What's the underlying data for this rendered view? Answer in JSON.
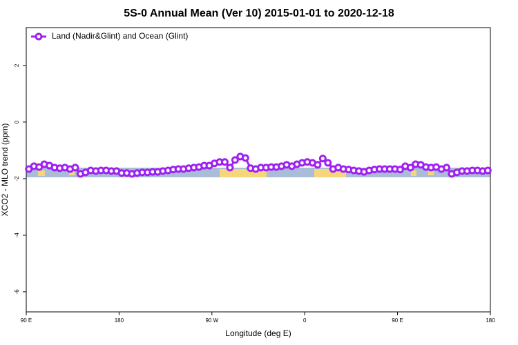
{
  "chart_data": {
    "type": "line",
    "title": "5S-0 Annual Mean (Ver 10)   2015-01-01 to 2020-12-18",
    "x_label": "Longitude (deg E)",
    "y_label": "XCO2 - MLO trend (ppm)",
    "legend": "top-left",
    "x": [
      92.5,
      97.5,
      102.5,
      107.5,
      112.5,
      117.5,
      122.5,
      127.5,
      132.5,
      137.5,
      142.5,
      147.5,
      152.5,
      157.5,
      162.5,
      167.5,
      172.5,
      177.5,
      182.5,
      187.5,
      192.5,
      197.5,
      202.5,
      207.5,
      212.5,
      217.5,
      222.5,
      227.5,
      232.5,
      237.5,
      242.5,
      247.5,
      252.5,
      257.5,
      262.5,
      267.5,
      272.5,
      277.5,
      282.5,
      287.5,
      292.5,
      297.5,
      302.5,
      307.5,
      312.5,
      317.5,
      322.5,
      327.5,
      332.5,
      337.5,
      342.5,
      347.5,
      352.5,
      357.5,
      362.5,
      367.5,
      372.5,
      377.5,
      382.5,
      387.5,
      392.5,
      397.5,
      402.5,
      407.5,
      412.5,
      417.5,
      422.5,
      427.5,
      432.5,
      437.5,
      442.5,
      447.5,
      452.5,
      457.5,
      462.5,
      467.5,
      472.5,
      477.5,
      482.5,
      487.5,
      492.5,
      497.5,
      502.5,
      507.5,
      512.5,
      517.5,
      522.5,
      527.5,
      532.5,
      537.5
    ],
    "series": [
      {
        "name": "Land (Nadir&Glint) and Ocean (Glint)",
        "color": "#a020f0",
        "values": [
          -1.66,
          -1.56,
          -1.59,
          -1.49,
          -1.54,
          -1.61,
          -1.63,
          -1.61,
          -1.66,
          -1.61,
          -1.83,
          -1.78,
          -1.71,
          -1.73,
          -1.71,
          -1.71,
          -1.73,
          -1.73,
          -1.8,
          -1.8,
          -1.83,
          -1.8,
          -1.78,
          -1.78,
          -1.76,
          -1.76,
          -1.73,
          -1.71,
          -1.68,
          -1.66,
          -1.66,
          -1.63,
          -1.61,
          -1.59,
          -1.54,
          -1.54,
          -1.46,
          -1.41,
          -1.41,
          -1.61,
          -1.34,
          -1.22,
          -1.27,
          -1.63,
          -1.66,
          -1.61,
          -1.61,
          -1.59,
          -1.59,
          -1.56,
          -1.51,
          -1.56,
          -1.49,
          -1.44,
          -1.41,
          -1.44,
          -1.51,
          -1.29,
          -1.44,
          -1.66,
          -1.61,
          -1.66,
          -1.68,
          -1.71,
          -1.73,
          -1.76,
          -1.71,
          -1.68,
          -1.66,
          -1.66,
          -1.66,
          -1.66,
          -1.68,
          -1.56,
          -1.61,
          -1.49,
          -1.51,
          -1.59,
          -1.61,
          -1.59,
          -1.66,
          -1.61,
          -1.83,
          -1.78,
          -1.73,
          -1.73,
          -1.71,
          -1.71,
          -1.73,
          -1.71
        ]
      }
    ],
    "xlim": [
      90,
      540
    ],
    "xticks": [
      {
        "value": 90,
        "label": "90 E"
      },
      180,
      {
        "value": 270,
        "label": "90 W"
      },
      {
        "value": 360,
        "label": "0"
      },
      {
        "value": 450,
        "label": "90 E"
      },
      {
        "value": 540,
        "label": "180"
      }
    ],
    "ylim": [
      -6.71,
      3.34
    ],
    "yticks": [
      2,
      0,
      -2,
      -4,
      -6
    ]
  }
}
